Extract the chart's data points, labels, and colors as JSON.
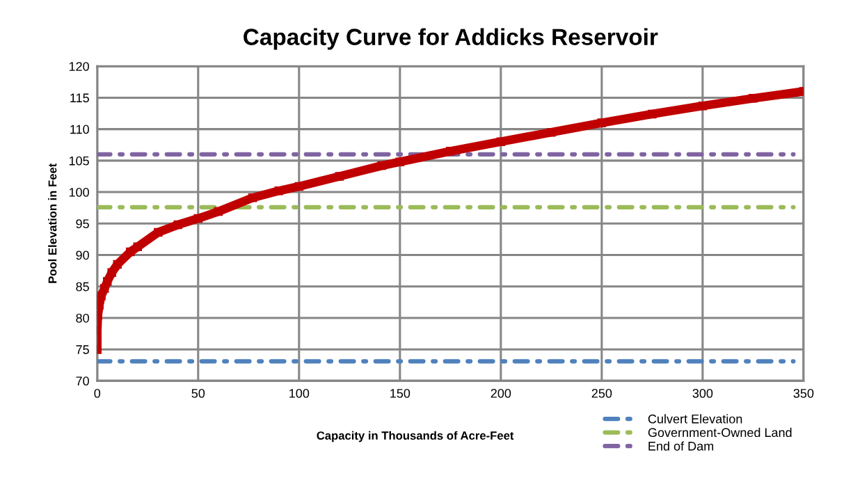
{
  "chart_data": {
    "type": "line",
    "title": "Capacity Curve for Addicks Reservoir",
    "xlabel": "Capacity in Thousands of Acre-Feet",
    "ylabel": "Pool Elevation in Feet",
    "xlim": [
      0,
      350
    ],
    "xticks": [
      0,
      50,
      100,
      150,
      200,
      250,
      300,
      350
    ],
    "ylim": [
      70,
      120
    ],
    "yticks": [
      70,
      75,
      80,
      85,
      90,
      95,
      100,
      105,
      110,
      115,
      120
    ],
    "grid": true,
    "legend": "bottom right",
    "series": [
      {
        "color": "#c00000",
        "marker": "square",
        "line_style": "solid",
        "x": [
          0,
          0,
          0.3,
          1,
          2,
          3.6,
          5,
          7.2,
          10,
          16.4,
          20,
          30.2,
          40,
          50,
          60,
          77,
          90,
          100,
          120,
          141,
          150,
          175,
          200,
          225,
          250,
          275,
          300,
          325,
          350
        ],
        "values": [
          75,
          78,
          80.4,
          82,
          83.5,
          84.7,
          85.8,
          87.2,
          88.5,
          90.5,
          91.3,
          93.6,
          94.8,
          95.8,
          96.9,
          99.1,
          100.2,
          100.9,
          102.5,
          104.2,
          104.8,
          106.5,
          108.0,
          109.5,
          111.0,
          112.4,
          113.7,
          114.9,
          116.0
        ]
      },
      {
        "name": "Culvert Elevation",
        "color": "#4f81bd",
        "marker": "none",
        "line_style": "dashdot",
        "x": [
          0,
          345
        ],
        "values": [
          73.1,
          73.1
        ]
      },
      {
        "name": "Government-Owned Land",
        "color": "#9bbb59",
        "marker": "none",
        "line_style": "dashdot",
        "x": [
          0,
          345
        ],
        "values": [
          97.6,
          97.6
        ]
      },
      {
        "name": "End of Dam",
        "color": "#8064a2",
        "marker": "none",
        "line_style": "dashdot",
        "x": [
          0,
          345
        ],
        "values": [
          106,
          106
        ]
      }
    ]
  }
}
